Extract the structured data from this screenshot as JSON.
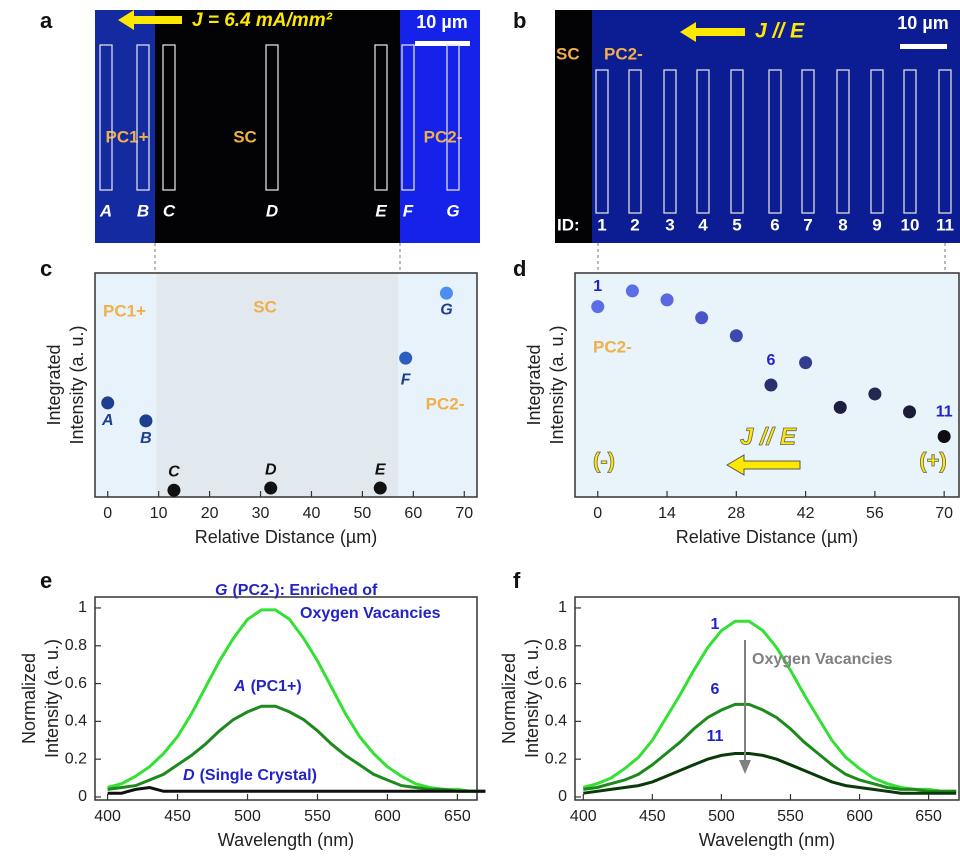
{
  "images": [
    {
      "panel_label": "a",
      "current": "J = 6.4 mA/mm²",
      "scale_bar": "10 µm",
      "regions": [
        "PC1+",
        "SC",
        "PC2-"
      ],
      "roi_labels": [
        "A",
        "B",
        "C",
        "D",
        "E",
        "F",
        "G"
      ]
    },
    {
      "panel_label": "b",
      "current": "J // E",
      "scale_bar": "10 µm",
      "regions": [
        "SC",
        "PC2-"
      ],
      "id_label": "ID:",
      "roi_labels": [
        "1",
        "2",
        "3",
        "4",
        "5",
        "6",
        "7",
        "8",
        "9",
        "10",
        "11"
      ]
    }
  ],
  "chart_data": [
    {
      "type": "scatter",
      "panel_label": "c",
      "xlabel": "Relative Distance (µm)",
      "ylabel": [
        "Integrated",
        "Intensity (a. u.)"
      ],
      "x": [
        0,
        7.5,
        13,
        32,
        53.5,
        58.5,
        66.5
      ],
      "values": [
        0.42,
        0.34,
        0.03,
        0.04,
        0.04,
        0.62,
        0.91
      ],
      "point_labels": [
        "A",
        "B",
        "C",
        "D",
        "E",
        "F",
        "G"
      ],
      "colors": [
        "#1d3f8f",
        "#1d3f8f",
        "#111111",
        "#111111",
        "#111111",
        "#2d5fc0",
        "#4a8ef0"
      ],
      "regions": [
        {
          "label": "PC1+",
          "from": -2.5,
          "to": 9.5,
          "color": "#e7f2fa"
        },
        {
          "label": "SC",
          "from": 9.5,
          "to": 57,
          "color": "#e2e9ee"
        },
        {
          "label": "PC2-",
          "from": 57,
          "to": 72.5,
          "color": "#e7f2fa"
        }
      ],
      "xlim": [
        -2.5,
        72.5
      ],
      "xticks": [
        0,
        10,
        20,
        30,
        40,
        50,
        60,
        70
      ],
      "ylim": [
        0,
        1
      ]
    },
    {
      "type": "scatter",
      "panel_label": "d",
      "xlabel": "Relative Distance (µm)",
      "ylabel": [
        "Integrated",
        "Intensity (a. u.)"
      ],
      "x": [
        0,
        7,
        14,
        21,
        28,
        35,
        42,
        49,
        56,
        63,
        70
      ],
      "values": [
        0.85,
        0.92,
        0.88,
        0.8,
        0.72,
        0.5,
        0.6,
        0.4,
        0.46,
        0.38,
        0.27
      ],
      "point_labels": [
        "1",
        null,
        null,
        null,
        null,
        "6",
        null,
        null,
        null,
        null,
        "11"
      ],
      "colors": [
        "#5b6ee8",
        "#5b6ee8",
        "#5a68e0",
        "#4a55c8",
        "#4048b0",
        "#2a2f70",
        "#343c90",
        "#1c1f40",
        "#222850",
        "#1a1c38",
        "#0d0d12"
      ],
      "background": "#e8f3fa",
      "region_label": "PC2-",
      "direction": "J // E",
      "left_pole": "(-)",
      "right_pole": "(+)",
      "xlim": [
        -4.6,
        73
      ],
      "xticks": [
        0,
        14,
        28,
        42,
        56,
        70
      ],
      "ylim": [
        0,
        1
      ]
    },
    {
      "type": "line",
      "panel_label": "e",
      "xlabel": "Wavelength (nm)",
      "ylabel": [
        "Normalized",
        "Intensity (a. u.)"
      ],
      "x": [
        400,
        410,
        420,
        430,
        440,
        450,
        460,
        470,
        480,
        490,
        500,
        510,
        520,
        530,
        540,
        550,
        560,
        570,
        580,
        590,
        600,
        610,
        620,
        630,
        640,
        650,
        660,
        670
      ],
      "series": [
        {
          "name": "G",
          "annotation": [
            "(PC2-): Enriched of",
            "Oxygen Vacancies"
          ],
          "color": "#33e033",
          "values": [
            0.05,
            0.07,
            0.11,
            0.16,
            0.23,
            0.32,
            0.44,
            0.58,
            0.72,
            0.84,
            0.94,
            0.99,
            0.99,
            0.94,
            0.84,
            0.72,
            0.58,
            0.44,
            0.32,
            0.23,
            0.16,
            0.11,
            0.07,
            0.05,
            0.04,
            0.04,
            0.03,
            0.03
          ]
        },
        {
          "name": "A",
          "annotation": [
            "(PC1+)"
          ],
          "color": "#1e8a1e",
          "values": [
            0.04,
            0.05,
            0.06,
            0.09,
            0.12,
            0.17,
            0.22,
            0.28,
            0.35,
            0.41,
            0.45,
            0.48,
            0.48,
            0.45,
            0.41,
            0.35,
            0.28,
            0.22,
            0.17,
            0.12,
            0.09,
            0.06,
            0.05,
            0.04,
            0.04,
            0.03,
            0.03,
            0.03
          ]
        },
        {
          "name": "D",
          "annotation": [
            "(Single Crystal)"
          ],
          "color": "#111111",
          "values": [
            0.02,
            0.02,
            0.04,
            0.05,
            0.03,
            0.03,
            0.03,
            0.03,
            0.03,
            0.03,
            0.03,
            0.03,
            0.03,
            0.03,
            0.03,
            0.03,
            0.03,
            0.03,
            0.03,
            0.03,
            0.03,
            0.03,
            0.03,
            0.03,
            0.03,
            0.03,
            0.03,
            0.03
          ]
        }
      ],
      "xlim": [
        391,
        664
      ],
      "xticks": [
        400,
        450,
        500,
        550,
        600,
        650
      ],
      "ylim": [
        -0.016,
        1.058
      ],
      "yticks": [
        0,
        0.2,
        0.4,
        0.6,
        0.8,
        1
      ]
    },
    {
      "type": "line",
      "panel_label": "f",
      "xlabel": "Wavelength (nm)",
      "ylabel": [
        "Normalized",
        "Intensity (a. u.)"
      ],
      "annotation": "Oxygen Vacancies",
      "x": [
        400,
        410,
        420,
        430,
        440,
        450,
        460,
        470,
        480,
        490,
        500,
        510,
        520,
        530,
        540,
        550,
        560,
        570,
        580,
        590,
        600,
        610,
        620,
        630,
        640,
        650,
        660,
        670
      ],
      "series": [
        {
          "name": "1",
          "color": "#33e033",
          "values": [
            0.05,
            0.07,
            0.1,
            0.15,
            0.21,
            0.3,
            0.42,
            0.54,
            0.67,
            0.79,
            0.88,
            0.93,
            0.93,
            0.88,
            0.79,
            0.67,
            0.54,
            0.42,
            0.3,
            0.21,
            0.15,
            0.1,
            0.07,
            0.05,
            0.04,
            0.04,
            0.03,
            0.03
          ]
        },
        {
          "name": "6",
          "color": "#1e8a1e",
          "values": [
            0.04,
            0.05,
            0.07,
            0.09,
            0.12,
            0.17,
            0.23,
            0.29,
            0.36,
            0.42,
            0.46,
            0.49,
            0.49,
            0.46,
            0.42,
            0.36,
            0.29,
            0.23,
            0.17,
            0.12,
            0.09,
            0.07,
            0.05,
            0.04,
            0.04,
            0.03,
            0.03,
            0.03
          ]
        },
        {
          "name": "11",
          "color": "#0a3a0a",
          "values": [
            0.02,
            0.03,
            0.04,
            0.05,
            0.06,
            0.08,
            0.11,
            0.14,
            0.17,
            0.2,
            0.22,
            0.23,
            0.23,
            0.22,
            0.2,
            0.17,
            0.14,
            0.11,
            0.08,
            0.06,
            0.05,
            0.04,
            0.03,
            0.02,
            0.02,
            0.02,
            0.02,
            0.02
          ]
        }
      ],
      "xlim": [
        394,
        672
      ],
      "xticks": [
        400,
        450,
        500,
        550,
        600,
        650
      ],
      "ylim": [
        -0.016,
        1.058
      ],
      "yticks": [
        0,
        0.2,
        0.4,
        0.6,
        0.8,
        1
      ]
    }
  ]
}
